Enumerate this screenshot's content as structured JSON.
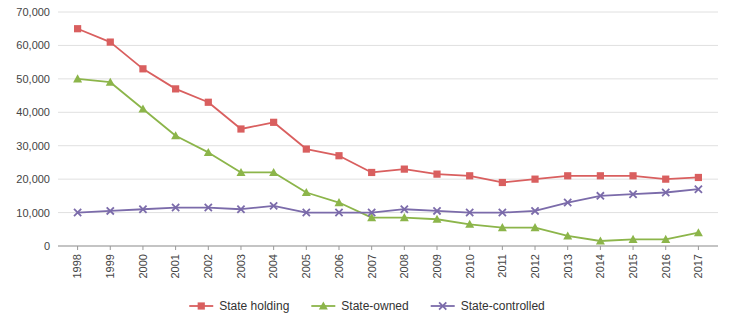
{
  "chart_data": {
    "type": "line",
    "x": [
      1998,
      1999,
      2000,
      2001,
      2002,
      2003,
      2004,
      2005,
      2006,
      2007,
      2008,
      2009,
      2010,
      2011,
      2012,
      2013,
      2014,
      2015,
      2016,
      2017
    ],
    "xlim": [
      1997.4,
      2017.6
    ],
    "xticks": [
      1998,
      1999,
      2000,
      2001,
      2002,
      2003,
      2004,
      2005,
      2006,
      2007,
      2008,
      2009,
      2010,
      2011,
      2012,
      2013,
      2014,
      2015,
      2016,
      2017
    ],
    "ylim": [
      0,
      70000
    ],
    "yticks": [
      0,
      {
        "value": 10000,
        "label": "10,000"
      },
      {
        "value": 20000,
        "label": "20,000"
      },
      {
        "value": 30000,
        "label": "30,000"
      },
      {
        "value": 40000,
        "label": "40,000"
      },
      {
        "value": 50000,
        "label": "50,000"
      },
      {
        "value": 60000,
        "label": "60,000"
      },
      {
        "value": 70000,
        "label": "70,000"
      }
    ],
    "grid": true,
    "legend": "bottom",
    "series": [
      {
        "name": "State holding",
        "color": "#d95f5f",
        "marker": "square",
        "values": [
          65000,
          61000,
          53000,
          47000,
          43000,
          35000,
          37000,
          29000,
          27000,
          22000,
          23000,
          21500,
          21000,
          19000,
          20000,
          21000,
          21000,
          21000,
          20000,
          20500
        ]
      },
      {
        "name": "State-owned",
        "color": "#8cb54a",
        "marker": "triangle",
        "values": [
          50000,
          49000,
          41000,
          33000,
          28000,
          22000,
          22000,
          16000,
          13000,
          8500,
          8500,
          8000,
          6500,
          5500,
          5500,
          3000,
          1500,
          2000,
          2000,
          4000
        ]
      },
      {
        "name": "State-controlled",
        "color": "#7b6baa",
        "marker": "x",
        "values": [
          10000,
          10500,
          11000,
          11500,
          11500,
          11000,
          12000,
          10000,
          10000,
          10000,
          11000,
          10500,
          10000,
          10000,
          10500,
          13000,
          15000,
          15500,
          16000,
          17000
        ]
      }
    ]
  }
}
